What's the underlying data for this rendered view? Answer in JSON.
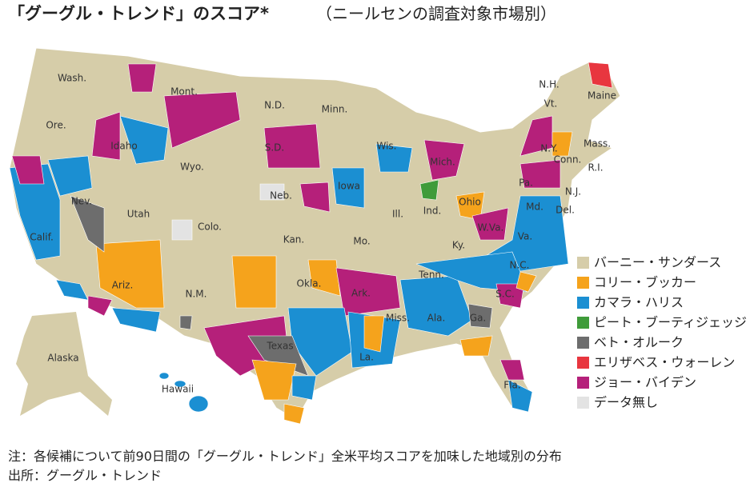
{
  "header": {
    "title": "「グーグル・トレンド」のスコア*",
    "subtitle": "（ニールセンの調査対象市場別）"
  },
  "legend": {
    "items": [
      {
        "label": "バーニー・サンダース",
        "color": "#d6cda9"
      },
      {
        "label": "コリー・ブッカー",
        "color": "#f5a31c"
      },
      {
        "label": "カマラ・ハリス",
        "color": "#1b8fd2"
      },
      {
        "label": "ピート・ブーティジェッジ",
        "color": "#3f9b3a"
      },
      {
        "label": "ベト・オルーク",
        "color": "#6d6d6d"
      },
      {
        "label": "エリザベス・ウォーレン",
        "color": "#e8363f"
      },
      {
        "label": "ジョー・バイデン",
        "color": "#b5207a"
      },
      {
        "label": "データ無し",
        "color": "#e3e3e3"
      }
    ]
  },
  "map": {
    "state_labels": [
      "Wash.",
      "Mont.",
      "N.D.",
      "Minn.",
      "Ore.",
      "Idaho",
      "Wyo.",
      "S.D.",
      "Wis.",
      "Mich.",
      "N.Y.",
      "Vt.",
      "N.H.",
      "Maine",
      "Mass.",
      "Conn.",
      "R.I.",
      "Nev.",
      "Utah",
      "Colo.",
      "Neb.",
      "Iowa",
      "Ill.",
      "Ind.",
      "Ohio",
      "Pa.",
      "N.J.",
      "Del.",
      "Md.",
      "Calif.",
      "Kan.",
      "Mo.",
      "Ky.",
      "W.Va.",
      "Va.",
      "N.C.",
      "Tenn.",
      "Okla.",
      "Ariz.",
      "N.M.",
      "Ark.",
      "S.C.",
      "Miss.",
      "Ala.",
      "Ga.",
      "Texas",
      "La.",
      "Fla.",
      "Alaska",
      "Hawaii"
    ]
  },
  "notes": [
    "注：各候補について前90日間の「グーグル・トレンド」全米平均スコアを加味した地域別の分布",
    "出所：グーグル・トレンド"
  ]
}
